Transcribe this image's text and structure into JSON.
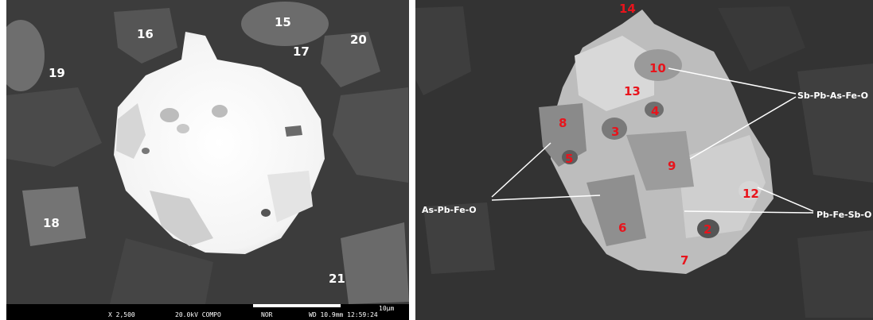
{
  "left_image": {
    "point_labels": [
      "16",
      "15",
      "20",
      "17",
      "19",
      "18",
      "21"
    ],
    "status_bar": {
      "magnification": "X 2,500",
      "voltage_mode": "20.0kV COMPO",
      "detector": "NOR",
      "wd_time": "WD 10.9mm 12:59:24",
      "scale": "10µm"
    }
  },
  "right_image": {
    "point_labels": [
      "14",
      "10",
      "13",
      "4",
      "8",
      "3",
      "5",
      "9",
      "12",
      "6",
      "2",
      "7"
    ],
    "annotations": {
      "sb_pb_as_fe_o": "Sb-Pb-As-Fe-O",
      "as_pb_fe_o": "As-Pb-Fe-O",
      "pb_fe_sb_o": "Pb-Fe-Sb-O"
    }
  },
  "colors": {
    "label_red": "#e8141c",
    "label_white": "#ffffff",
    "background": "#3a3a3a"
  }
}
